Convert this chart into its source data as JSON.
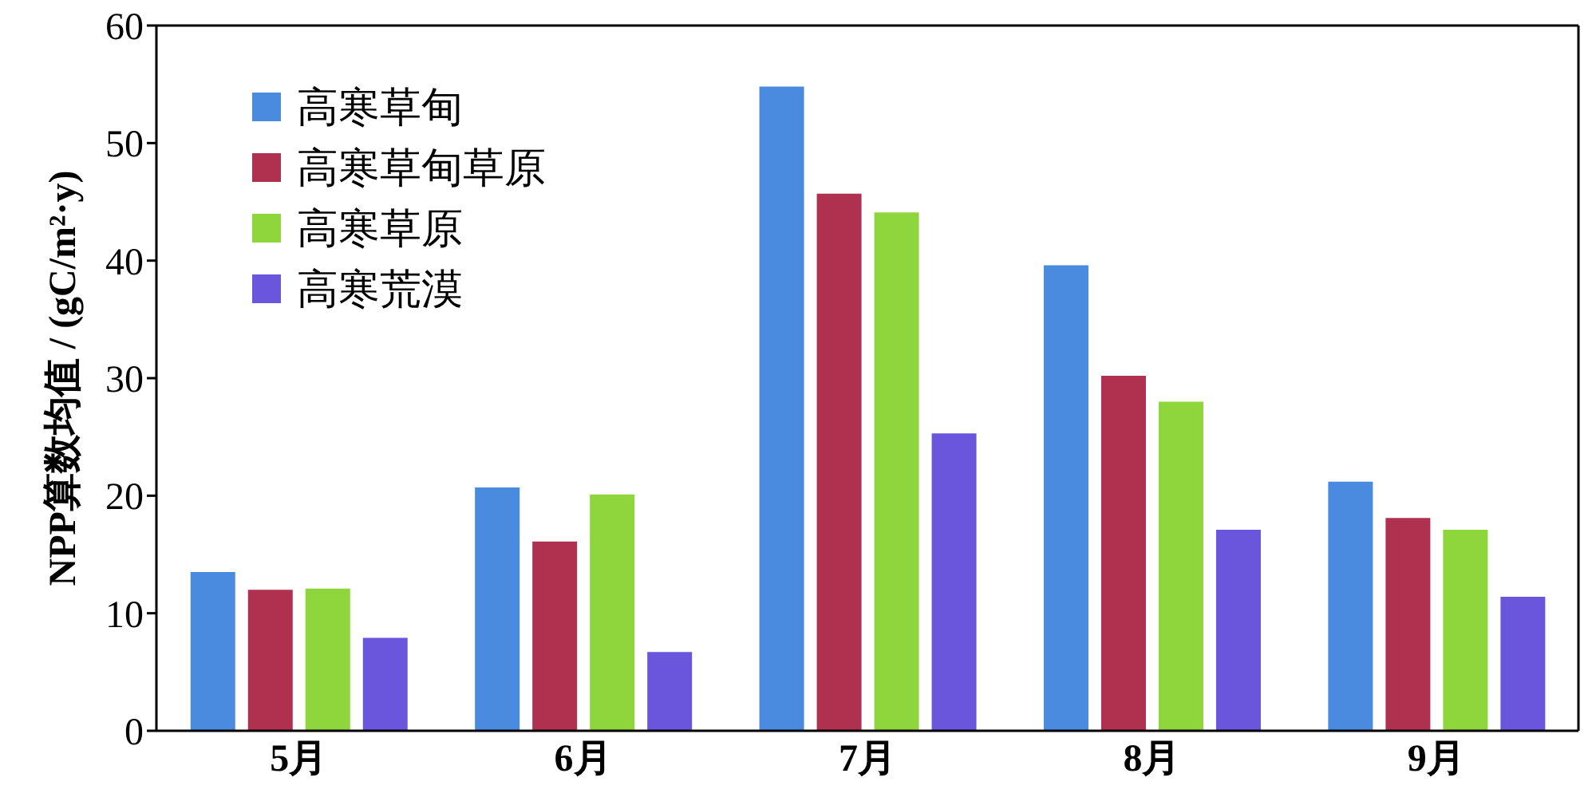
{
  "chart_data": {
    "type": "bar",
    "ylabel": "NPP算数均值 / (gC/m²·y)",
    "categories": [
      "5月",
      "6月",
      "7月",
      "8月",
      "9月"
    ],
    "series": [
      {
        "name": "高寒草甸",
        "color": "#4a8be0",
        "values": [
          13.5,
          20.7,
          54.8,
          39.6,
          21.2
        ]
      },
      {
        "name": "高寒草甸草原",
        "color": "#b03050",
        "values": [
          12.0,
          16.1,
          45.7,
          30.2,
          18.1
        ]
      },
      {
        "name": "高寒草原",
        "color": "#8fd63c",
        "values": [
          12.1,
          20.1,
          44.1,
          28.0,
          17.1
        ]
      },
      {
        "name": "高寒荒漠",
        "color": "#6a55dd",
        "values": [
          7.9,
          6.7,
          25.3,
          17.1,
          11.4
        ]
      }
    ],
    "ylim": [
      0,
      60
    ],
    "yticks": [
      0,
      10,
      20,
      30,
      40,
      50,
      60
    ],
    "grid": false,
    "legend": "top left"
  }
}
